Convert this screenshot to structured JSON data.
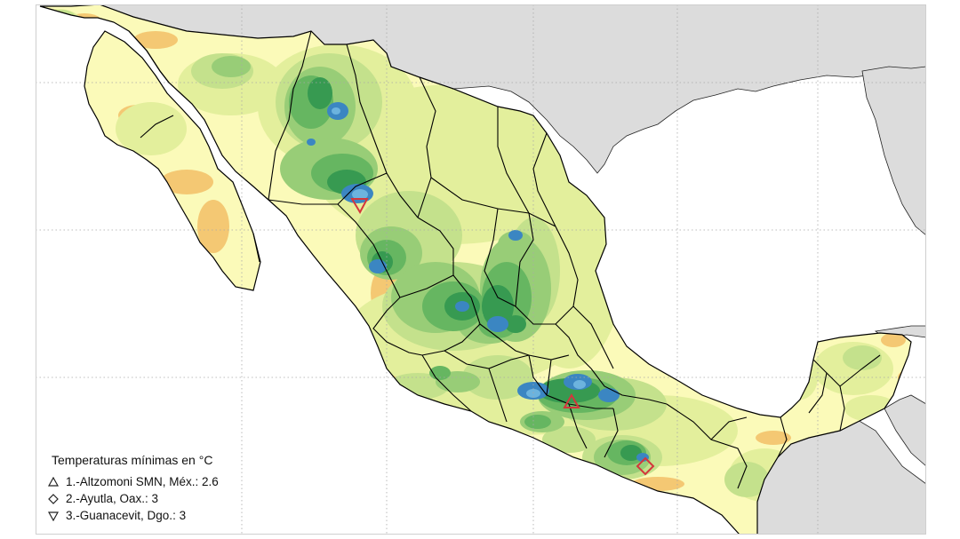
{
  "map": {
    "colors": {
      "ocean": "#ffffff",
      "land_bg": "#dcdcdc",
      "frame_border": "#cfcfcf",
      "grid": "#a8a8a8",
      "state_border": "#000000",
      "bands": [
        "#fbfab9",
        "#e3ef9c",
        "#c4e18c",
        "#98cd77",
        "#66b661",
        "#379a51",
        "#2a8a55",
        "#3b86c2",
        "#6cb3de",
        "#a6d5ef"
      ],
      "warm": "#f4c873",
      "warm_deep": "#efa85e",
      "marker": "#d4363c"
    }
  },
  "legend": {
    "title": "Temperaturas mínimas en °C",
    "entries": [
      {
        "symbol": "triangle-up-icon",
        "label": "1.-Altzomoni SMN, Méx.: 2.6"
      },
      {
        "symbol": "diamond-icon",
        "label": "2.-Ayutla, Oax.: 3"
      },
      {
        "symbol": "triangle-down-icon",
        "label": "3.-Guanacevit, Dgo.: 3"
      }
    ]
  }
}
